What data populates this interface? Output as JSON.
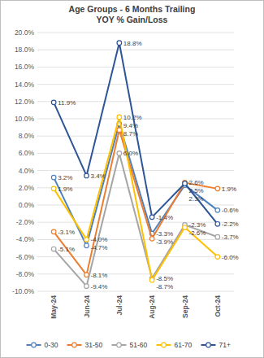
{
  "chart_data": {
    "type": "line",
    "title": "Age Groups - 6 Months Trailing",
    "subtitle": "YOY % Gain/Loss",
    "categories": [
      "May-24",
      "Jun-24",
      "Jul-24",
      "Aug-24",
      "Sep-24",
      "Oct-24"
    ],
    "series": [
      {
        "name": "0-30",
        "color": "#4f81bd",
        "marker": "circle",
        "values": [
          3.2,
          -4.7,
          9.4,
          -3.3,
          2.3,
          -0.6
        ],
        "value_labels": [
          "3.2%",
          "-4.7%",
          "9.4%",
          "-3.3%",
          "2.3%",
          "-0.6%"
        ]
      },
      {
        "name": "31-50",
        "color": "#ed7d31",
        "marker": "circle",
        "values": [
          -3.1,
          -8.1,
          8.7,
          -3.9,
          2.6,
          1.9
        ],
        "value_labels": [
          "-3.1%",
          "-8.1%",
          "8.7%",
          "-3.9%",
          "2.6%",
          "1.9%"
        ]
      },
      {
        "name": "51-60",
        "color": "#a5a5a5",
        "marker": "circle",
        "values": [
          -5.1,
          -9.4,
          6.0,
          -8.5,
          -2.3,
          -3.7
        ],
        "value_labels": [
          "-5.1%",
          "-9.4%",
          "6.0%",
          "-8.5%",
          "-2.3%",
          "-3.7%"
        ]
      },
      {
        "name": "61-70",
        "color": "#ffc000",
        "marker": "circle",
        "values": [
          1.9,
          -4.0,
          10.2,
          -8.7,
          -2.6,
          -6.0
        ],
        "value_labels": [
          "1.9%",
          "-4.0%",
          "10.2%",
          "-8.7%",
          "-2.6%",
          "-6.0%"
        ]
      },
      {
        "name": "71+",
        "color": "#2e5597",
        "marker": "circle",
        "values": [
          11.9,
          3.4,
          18.8,
          -1.4,
          2.5,
          -2.2
        ],
        "value_labels": [
          "11.9%",
          "3.4%",
          "18.8%",
          "-1.4%",
          "2.5%",
          "-2.2%"
        ]
      }
    ],
    "ylim": [
      -10,
      20
    ],
    "yticks": [
      {
        "value": -10,
        "label": "-10.0%"
      },
      {
        "value": -8,
        "label": "-8.0%"
      },
      {
        "value": -6,
        "label": "-6.0%"
      },
      {
        "value": -4,
        "label": "-4.0%"
      },
      {
        "value": -2,
        "label": "-2.0%"
      },
      {
        "value": 0,
        "label": "0.0%"
      },
      {
        "value": 2,
        "label": "2.0%"
      },
      {
        "value": 4,
        "label": "4.0%"
      },
      {
        "value": 6,
        "label": "6.0%"
      },
      {
        "value": 8,
        "label": "8.0%"
      },
      {
        "value": 10,
        "label": "10.0%"
      },
      {
        "value": 12,
        "label": "12.0%"
      },
      {
        "value": 14,
        "label": "14.0%"
      },
      {
        "value": 16,
        "label": "16.0%"
      },
      {
        "value": 18,
        "label": "18.0%"
      },
      {
        "value": 20,
        "label": "20.0%"
      }
    ],
    "grid": true,
    "legend": "bottom",
    "data_labels": true
  }
}
